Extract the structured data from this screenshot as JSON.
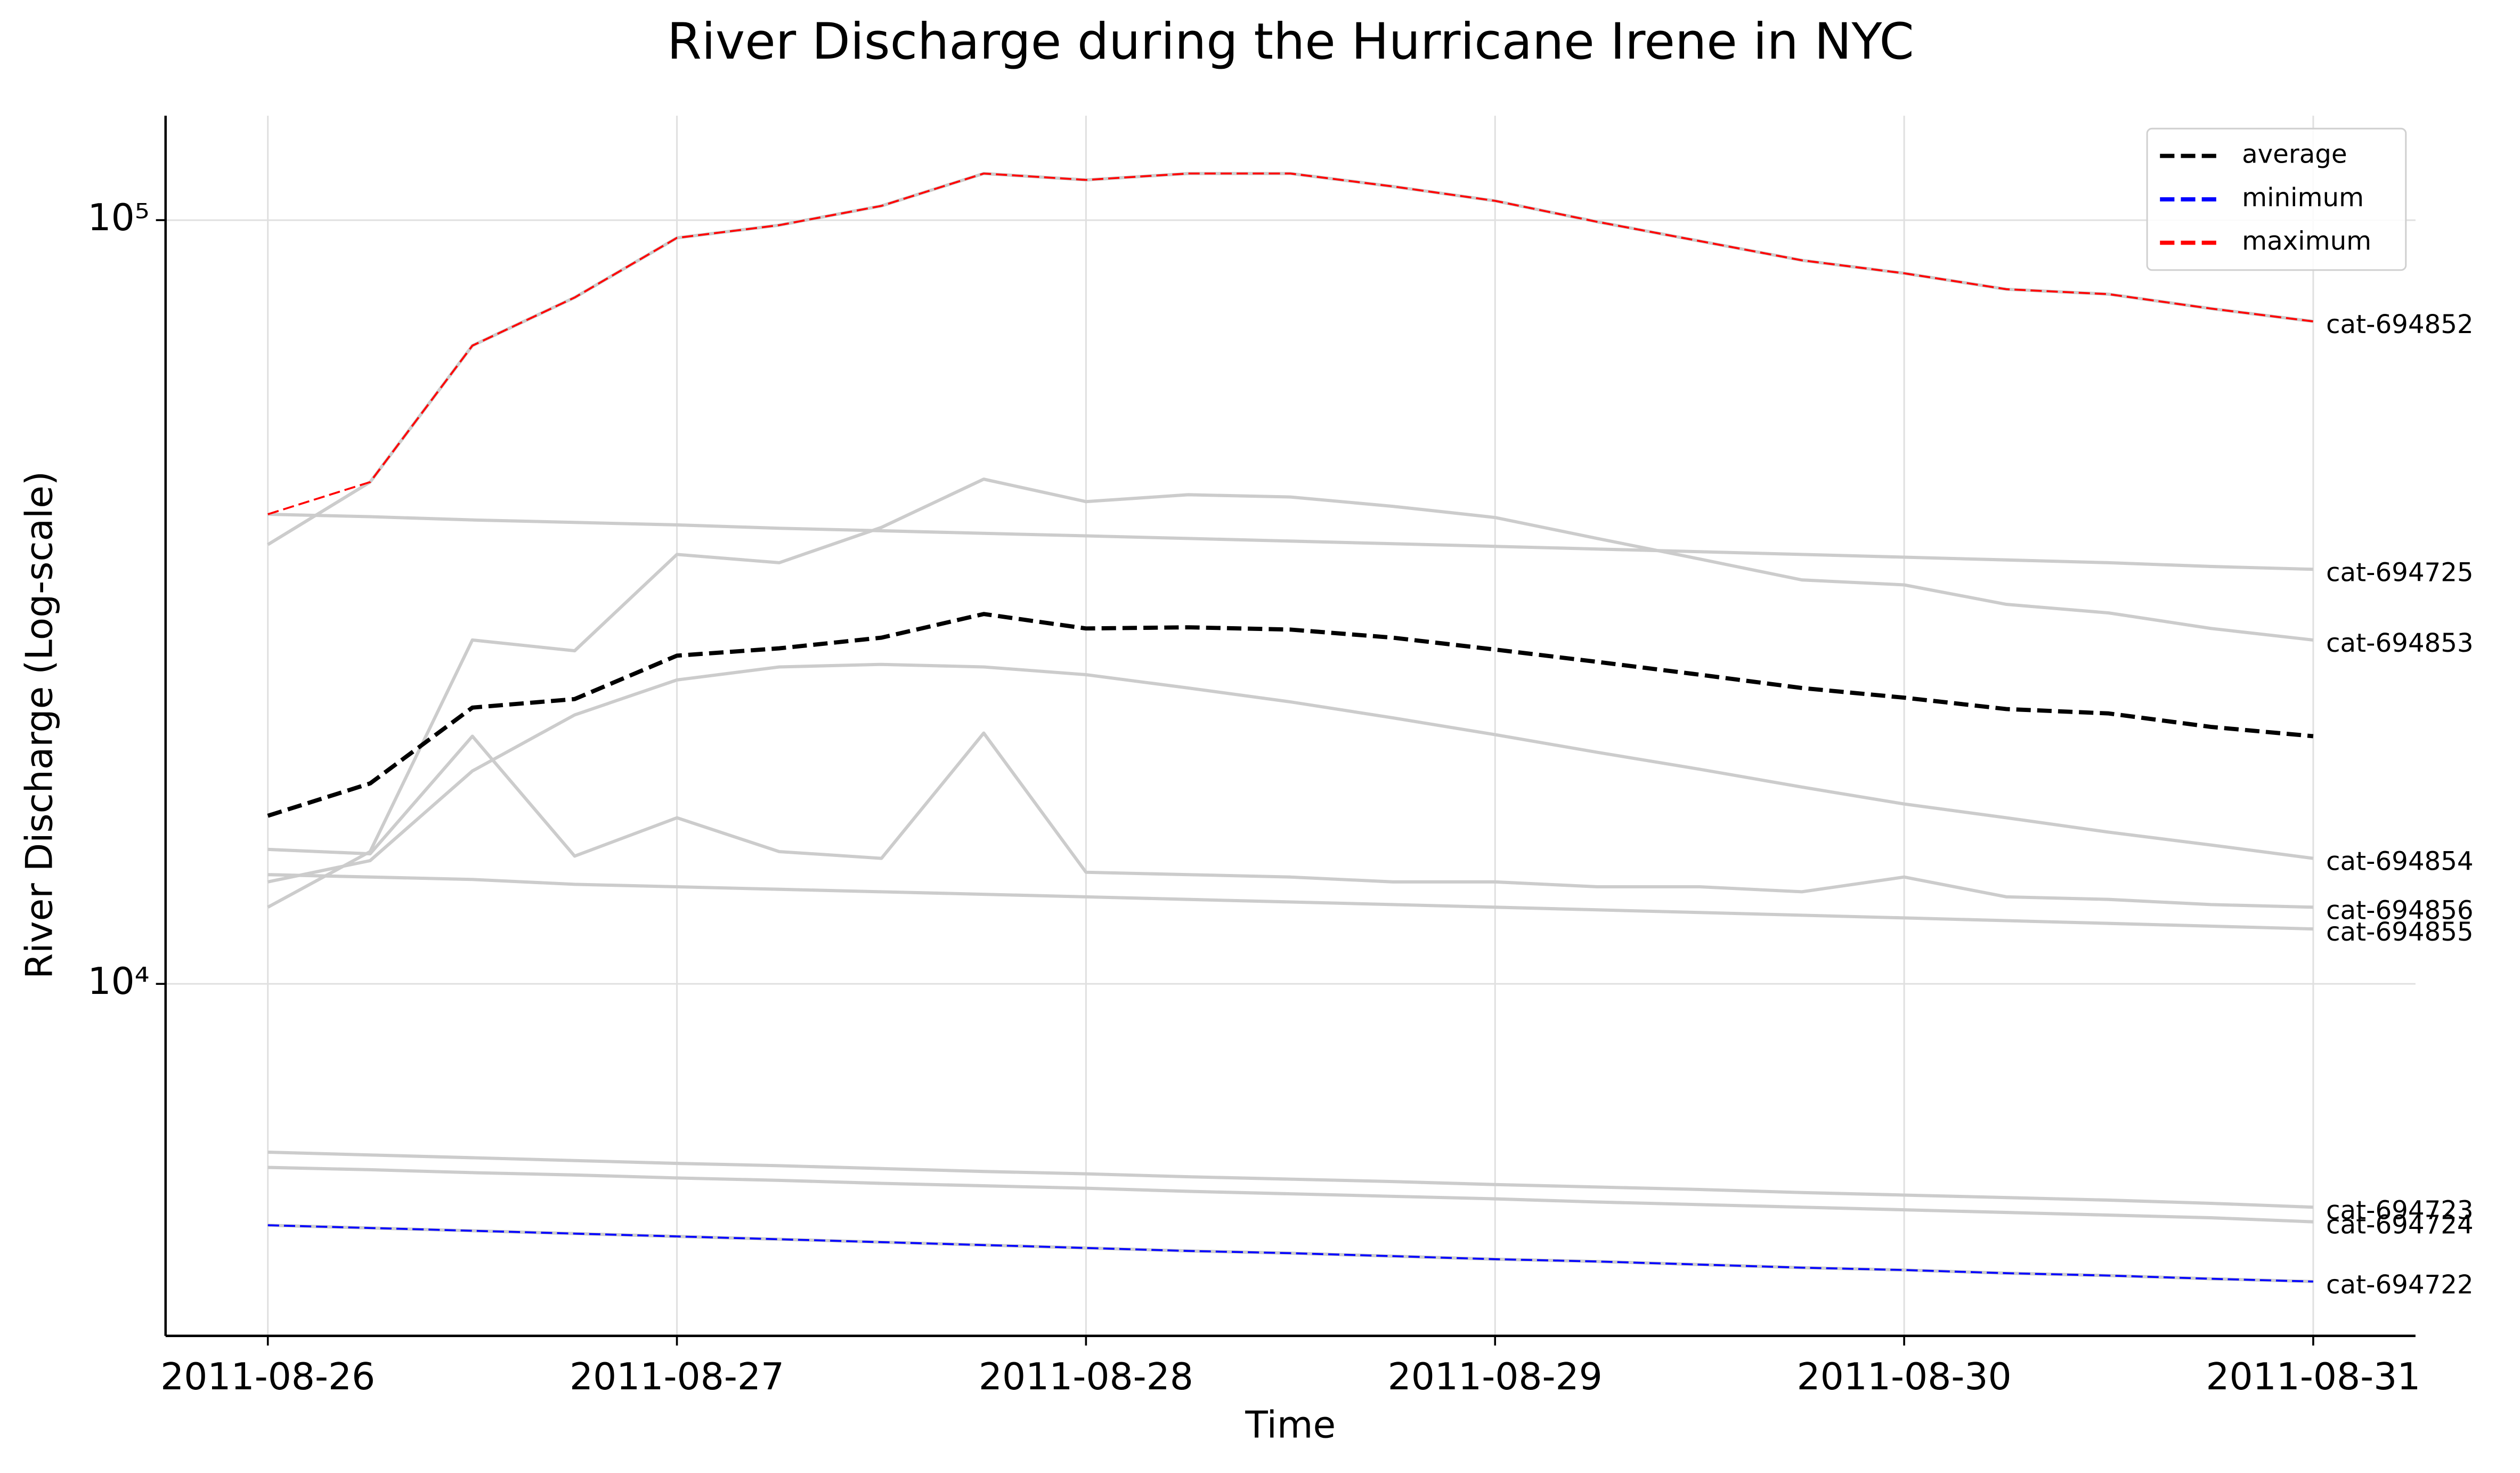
{
  "chart_data": {
    "type": "line",
    "title": "River Discharge during the Hurricane Irene in NYC",
    "x_label": "Time",
    "y_label": "River Discharge (Log-scale)",
    "y_scale": "log",
    "grid": true,
    "legend_position": "upper right",
    "x": [
      "2011-08-26 00:00",
      "2011-08-26 06:00",
      "2011-08-26 12:00",
      "2011-08-26 18:00",
      "2011-08-27 00:00",
      "2011-08-27 06:00",
      "2011-08-27 12:00",
      "2011-08-27 18:00",
      "2011-08-28 00:00",
      "2011-08-28 06:00",
      "2011-08-28 12:00",
      "2011-08-28 18:00",
      "2011-08-29 00:00",
      "2011-08-29 06:00",
      "2011-08-29 12:00",
      "2011-08-29 18:00",
      "2011-08-30 00:00",
      "2011-08-30 06:00",
      "2011-08-30 12:00",
      "2011-08-30 18:00",
      "2011-08-31 00:00"
    ],
    "xlim": [
      "2011-08-25 18:00",
      "2011-08-31 06:00"
    ],
    "xticks": [
      "2011-08-26",
      "2011-08-27",
      "2011-08-28",
      "2011-08-29",
      "2011-08-30",
      "2011-08-31"
    ],
    "ylim": [
      3460,
      137000
    ],
    "yticks": [
      {
        "value": 10000,
        "label": "10⁴"
      },
      {
        "value": 100000,
        "label": "10⁵"
      }
    ],
    "series": [
      {
        "name": "cat-694852",
        "color": "#cccccc",
        "style": "solid",
        "values": [
          37600,
          45400,
          68500,
          79200,
          94800,
          98500,
          104400,
          115100,
          112900,
          115100,
          115100,
          110700,
          106000,
          99500,
          93900,
          88600,
          85200,
          81200,
          80000,
          76600,
          73700
        ]
      },
      {
        "name": "cat-694725",
        "color": "#cccccc",
        "style": "solid",
        "values": [
          41200,
          40900,
          40500,
          40200,
          39900,
          39500,
          39200,
          38900,
          38600,
          38300,
          38000,
          37700,
          37400,
          37100,
          36800,
          36500,
          36200,
          35900,
          35600,
          35200,
          34900
        ]
      },
      {
        "name": "cat-694853",
        "color": "#cccccc",
        "style": "solid",
        "values": [
          12600,
          14900,
          28200,
          27300,
          36500,
          35600,
          39600,
          45800,
          42800,
          43700,
          43400,
          42200,
          40800,
          38300,
          36000,
          33800,
          33300,
          31400,
          30600,
          29200,
          28200
        ]
      },
      {
        "name": "cat-694854",
        "color": "#cccccc",
        "style": "solid",
        "values": [
          13600,
          14500,
          19000,
          22500,
          25000,
          26000,
          26200,
          26000,
          25400,
          24400,
          23400,
          22300,
          21200,
          20100,
          19100,
          18100,
          17200,
          16500,
          15800,
          15200,
          14600
        ]
      },
      {
        "name": "cat-694856",
        "color": "#cccccc",
        "style": "solid",
        "values": [
          15000,
          14800,
          21100,
          14700,
          16500,
          14900,
          14600,
          21300,
          14000,
          13900,
          13800,
          13600,
          13600,
          13400,
          13400,
          13200,
          13800,
          13000,
          12900,
          12700,
          12600
        ]
      },
      {
        "name": "cat-694855",
        "color": "#cccccc",
        "style": "solid",
        "values": [
          13900,
          13800,
          13700,
          13500,
          13400,
          13300,
          13200,
          13100,
          13000,
          12900,
          12800,
          12700,
          12600,
          12500,
          12400,
          12300,
          12200,
          12100,
          12000,
          11900,
          11800
        ]
      },
      {
        "name": "cat-694723",
        "color": "#cccccc",
        "style": "solid",
        "values": [
          6020,
          5970,
          5920,
          5870,
          5820,
          5780,
          5730,
          5680,
          5640,
          5590,
          5550,
          5510,
          5460,
          5420,
          5380,
          5330,
          5290,
          5250,
          5210,
          5160,
          5100
        ]
      },
      {
        "name": "cat-694724",
        "color": "#cccccc",
        "style": "solid",
        "values": [
          5750,
          5710,
          5660,
          5620,
          5570,
          5530,
          5480,
          5440,
          5400,
          5350,
          5310,
          5270,
          5230,
          5180,
          5140,
          5100,
          5060,
          5020,
          4980,
          4940,
          4880
        ]
      },
      {
        "name": "cat-694722",
        "color": "#cccccc",
        "style": "solid",
        "values": [
          4830,
          4790,
          4750,
          4710,
          4670,
          4630,
          4590,
          4550,
          4510,
          4470,
          4440,
          4400,
          4360,
          4330,
          4290,
          4250,
          4220,
          4180,
          4150,
          4110,
          4076
        ]
      },
      {
        "name": "average",
        "color": "#000000",
        "style": "dashed",
        "values": [
          16600,
          18300,
          23000,
          23600,
          26900,
          27500,
          28400,
          30500,
          29200,
          29300,
          29100,
          28400,
          27400,
          26400,
          25400,
          24400,
          23700,
          22900,
          22600,
          21700,
          21100
        ]
      },
      {
        "name": "minimum",
        "color": "#0000ff",
        "style": "dashed",
        "values": [
          4830,
          4790,
          4750,
          4710,
          4670,
          4630,
          4590,
          4550,
          4510,
          4470,
          4440,
          4400,
          4360,
          4330,
          4290,
          4250,
          4220,
          4180,
          4150,
          4110,
          4076
        ]
      },
      {
        "name": "maximum",
        "color": "#ff0000",
        "style": "dashed",
        "values": [
          41200,
          45400,
          68500,
          79200,
          94800,
          98500,
          104400,
          115100,
          112900,
          115100,
          115100,
          110700,
          106000,
          99500,
          93900,
          88600,
          85200,
          81200,
          80000,
          76600,
          73700
        ]
      }
    ]
  }
}
